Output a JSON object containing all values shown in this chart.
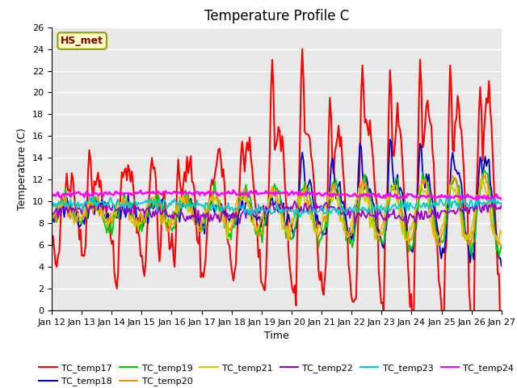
{
  "title": "Temperature Profile C",
  "xlabel": "Time",
  "ylabel": "Temperature (C)",
  "ylim": [
    0,
    26
  ],
  "yticks": [
    0,
    2,
    4,
    6,
    8,
    10,
    12,
    14,
    16,
    18,
    20,
    22,
    24,
    26
  ],
  "annotation_text": "HS_met",
  "annotation_color": "#8B0000",
  "annotation_bg": "#FFFFCC",
  "annotation_border": "#999900",
  "plot_bg": "#E8E8E8",
  "fig_bg": "#FFFFFF",
  "series_order": [
    "TC_temp17",
    "TC_temp18",
    "TC_temp19",
    "TC_temp20",
    "TC_temp21",
    "TC_temp22",
    "TC_temp23",
    "TC_temp24"
  ],
  "series_colors": {
    "TC_temp17": "#FF0000",
    "TC_temp18": "#0000CC",
    "TC_temp19": "#00CC00",
    "TC_temp20": "#FF8C00",
    "TC_temp21": "#CCCC00",
    "TC_temp22": "#9900CC",
    "TC_temp23": "#00CCCC",
    "TC_temp24": "#FF00FF"
  },
  "series_lw": {
    "TC_temp17": 1.5,
    "TC_temp18": 1.3,
    "TC_temp19": 1.3,
    "TC_temp20": 1.3,
    "TC_temp21": 1.3,
    "TC_temp22": 1.3,
    "TC_temp23": 1.3,
    "TC_temp24": 1.8
  },
  "legend_ncol": 6,
  "title_fontsize": 12,
  "tick_fontsize": 8,
  "label_fontsize": 9
}
